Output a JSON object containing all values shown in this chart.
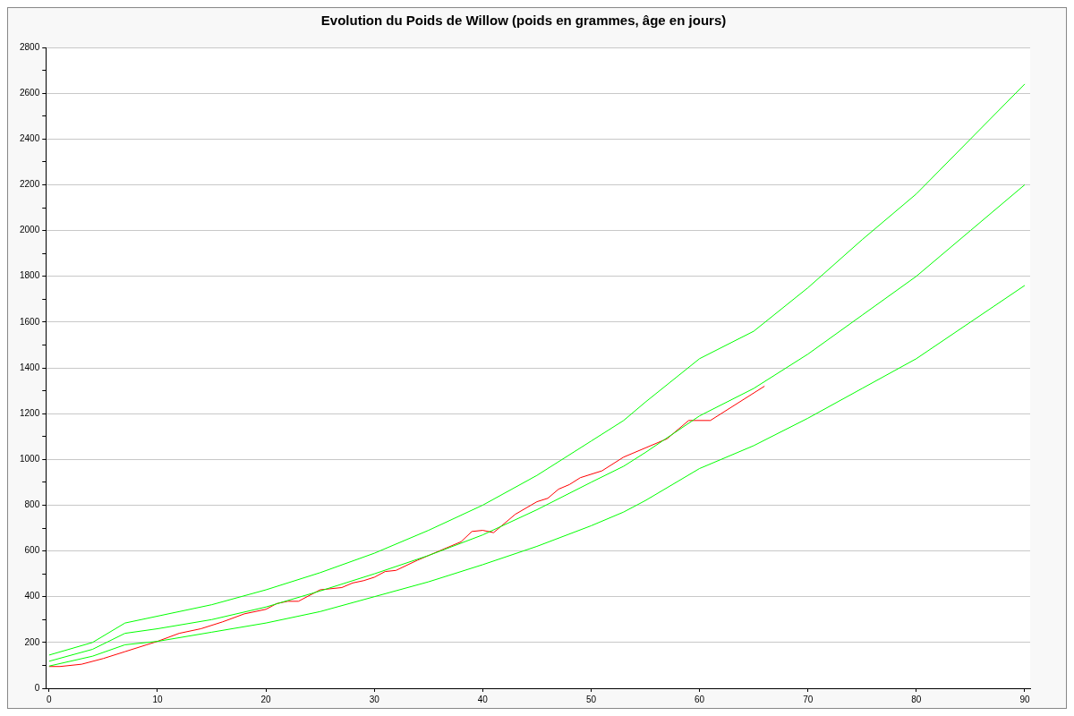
{
  "chart_data": {
    "type": "line",
    "title": "Evolution du Poids de Willow (poids en grammes, âge en jours)",
    "x": [
      0,
      4,
      7,
      10,
      15,
      20,
      25,
      30,
      35,
      40,
      45,
      50,
      53,
      55,
      60,
      65,
      70,
      75,
      80,
      85,
      90
    ],
    "series": [
      {
        "color": "#00ff00",
        "values": [
          145,
          200,
          285,
          315,
          365,
          430,
          505,
          590,
          690,
          800,
          930,
          1080,
          1170,
          1250,
          1440,
          1560,
          1750,
          1960,
          2160,
          2400,
          2640
        ]
      },
      {
        "color": "#00ff00",
        "values": [
          118,
          170,
          240,
          260,
          300,
          355,
          425,
          500,
          580,
          670,
          780,
          900,
          970,
          1030,
          1190,
          1310,
          1460,
          1630,
          1800,
          2000,
          2200
        ]
      },
      {
        "color": "#00ff00",
        "values": [
          97,
          140,
          190,
          205,
          245,
          285,
          335,
          400,
          465,
          540,
          620,
          710,
          770,
          820,
          960,
          1060,
          1180,
          1310,
          1440,
          1600,
          1760
        ]
      },
      {
        "color": "#ff0000",
        "x": [
          0,
          1,
          3,
          5,
          7,
          9,
          10,
          12,
          14,
          16,
          18,
          20,
          21,
          22,
          23,
          25,
          27,
          28,
          29,
          30,
          31,
          32,
          34,
          36,
          38,
          39,
          40,
          41,
          43,
          45,
          46,
          47,
          48,
          49,
          51,
          53,
          55,
          57,
          59,
          61,
          66
        ],
        "values": [
          95,
          95,
          105,
          130,
          160,
          190,
          205,
          240,
          260,
          290,
          325,
          345,
          370,
          380,
          380,
          430,
          440,
          460,
          470,
          485,
          510,
          515,
          560,
          600,
          640,
          685,
          690,
          680,
          760,
          815,
          830,
          870,
          890,
          920,
          950,
          1010,
          1050,
          1090,
          1170,
          1170,
          1320
        ]
      }
    ],
    "xlim": [
      -0.3,
      90.5
    ],
    "xticks": [
      0,
      10,
      20,
      30,
      40,
      50,
      60,
      70,
      80,
      90
    ],
    "ylim": [
      0,
      2800
    ],
    "yticks": [
      0,
      {
        "value": 100,
        "label": null
      },
      200,
      {
        "value": 300,
        "label": null
      },
      400,
      {
        "value": 500,
        "label": null
      },
      600,
      {
        "value": 700,
        "label": null
      },
      800,
      {
        "value": 900,
        "label": null
      },
      1000,
      {
        "value": 1100,
        "label": null
      },
      1200,
      {
        "value": 1300,
        "label": null
      },
      1400,
      {
        "value": 1500,
        "label": null
      },
      1600,
      {
        "value": 1700,
        "label": null
      },
      1800,
      {
        "value": 1900,
        "label": null
      },
      2000,
      {
        "value": 2100,
        "label": null
      },
      2200,
      {
        "value": 2300,
        "label": null
      },
      2400,
      {
        "value": 2500,
        "label": null
      },
      2600,
      {
        "value": 2700,
        "label": null
      },
      2800
    ],
    "grid": "y",
    "legend": false,
    "marker": "none",
    "line_style": "solid"
  }
}
